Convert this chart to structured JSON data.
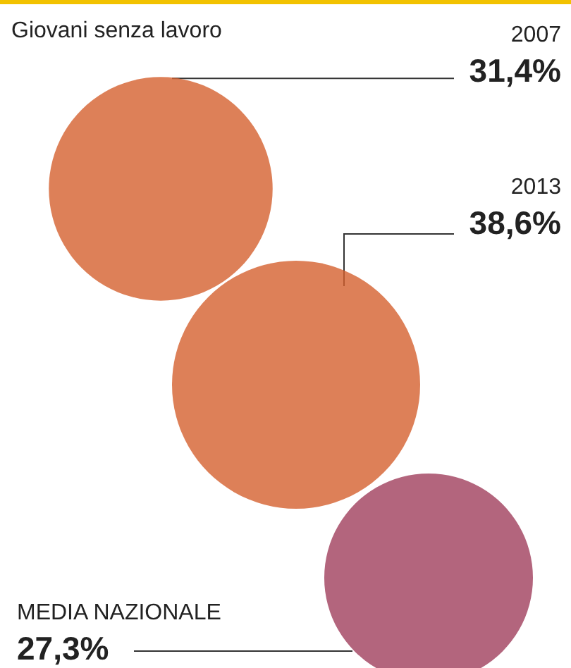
{
  "chart_data": {
    "type": "other",
    "title": "Giovani senza lavoro",
    "categories": [
      "2007",
      "2013",
      "MEDIA NAZIONALE"
    ],
    "values": [
      31.4,
      38.6,
      27.3
    ],
    "value_labels": [
      "31,4%",
      "38,6%",
      "27,3%"
    ],
    "colors": [
      "#d5602e",
      "#d5602e",
      "#a03f5c"
    ]
  }
}
